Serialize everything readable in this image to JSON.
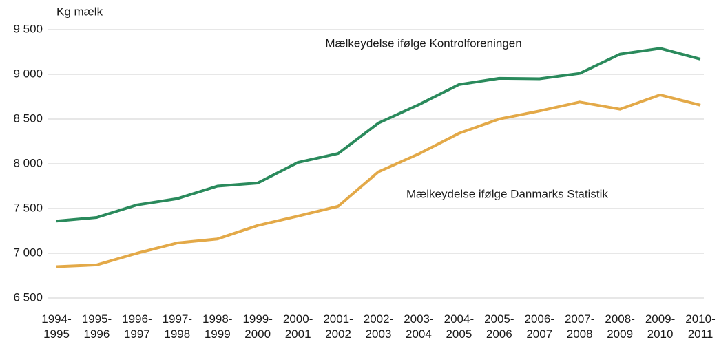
{
  "chart_data": {
    "type": "line",
    "y_axis_label": "Kg mælk",
    "categories": [
      [
        "1994-",
        "1995"
      ],
      [
        "1995-",
        "1996"
      ],
      [
        "1996-",
        "1997"
      ],
      [
        "1997-",
        "1998"
      ],
      [
        "1998-",
        "1999"
      ],
      [
        "1999-",
        "2000"
      ],
      [
        "2000-",
        "2001"
      ],
      [
        "2001-",
        "2002"
      ],
      [
        "2002-",
        "2003"
      ],
      [
        "2003-",
        "2004"
      ],
      [
        "2004-",
        "2005"
      ],
      [
        "2005-",
        "2006"
      ],
      [
        "2006-",
        "2007"
      ],
      [
        "2007-",
        "2008"
      ],
      [
        "2008-",
        "2009"
      ],
      [
        "2009-",
        "2010"
      ],
      [
        "2010-",
        "2011"
      ]
    ],
    "series": [
      {
        "name": "Mælkeydelse ifølge Kontrolforeningen",
        "color": "#2a8a5c",
        "values": [
          7360,
          7400,
          7540,
          7610,
          7750,
          7785,
          8015,
          8115,
          8455,
          8660,
          8885,
          8955,
          8950,
          9010,
          9225,
          9290,
          9170
        ]
      },
      {
        "name": "Mælkeydelse ifølge Danmarks Statistik",
        "color": "#e3a948",
        "values": [
          6850,
          6870,
          7000,
          7115,
          7160,
          7310,
          7415,
          7525,
          7910,
          8110,
          8340,
          8500,
          8590,
          8690,
          8610,
          8770,
          8655
        ]
      }
    ],
    "ylim": [
      6500,
      9500
    ],
    "yticks": [
      {
        "value": 6500,
        "label": "6 500"
      },
      {
        "value": 7000,
        "label": "7 000"
      },
      {
        "value": 7500,
        "label": "7 500"
      },
      {
        "value": 8000,
        "label": "8 000"
      },
      {
        "value": 8500,
        "label": "8 500"
      },
      {
        "value": 9000,
        "label": "9 000"
      },
      {
        "value": 9500,
        "label": "9 500"
      }
    ],
    "grid": true
  }
}
